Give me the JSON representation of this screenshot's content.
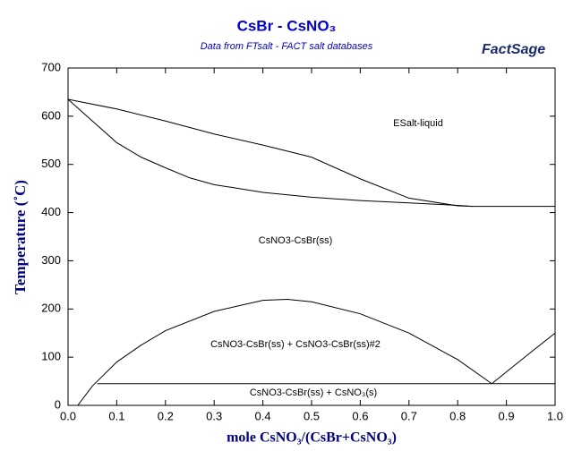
{
  "chart_data": {
    "type": "line",
    "title": "CsBr - CsNO₃",
    "subtitle": "Data from FTsalt - FACT salt databases",
    "logo": "FactSage",
    "x_label": "mole CsNO₃/(CsBr+CsNO₃)",
    "y_label": "Temperature (˚C)",
    "annotations": [
      "ESalt-liquid",
      "CsNO3-CsBr(ss)",
      "CsNO3-CsBr(ss) + CsNO3-CsBr(ss)#2",
      "CsNO3-CsBr(ss) + CsNO₃(s)"
    ],
    "xlim": [
      0,
      1
    ],
    "ylim": [
      0,
      700
    ],
    "xticks": [
      {
        "value": 0,
        "label": "0.0"
      },
      0.1,
      0.2,
      0.3,
      0.4,
      0.5,
      0.6,
      0.7,
      0.8,
      0.9,
      {
        "value": 1,
        "label": "1.0"
      }
    ],
    "yticks": [
      0,
      100,
      200,
      300,
      400,
      500,
      600,
      700
    ],
    "color": "#000000",
    "series": [
      {
        "x": [
          0,
          0.1,
          0.2,
          0.3,
          0.4,
          0.5,
          0.6,
          0.7,
          0.8,
          0.83,
          1.0
        ],
        "values": [
          635,
          615,
          590,
          563,
          540,
          515,
          470,
          430,
          414,
          413,
          413
        ]
      },
      {
        "x": [
          0,
          0.05,
          0.1,
          0.15,
          0.2,
          0.25,
          0.3,
          0.4,
          0.5,
          0.6,
          0.7,
          0.8,
          0.83
        ],
        "values": [
          635,
          590,
          545,
          515,
          493,
          472,
          458,
          442,
          432,
          425,
          420,
          415,
          413
        ]
      },
      {
        "x": [
          0.02,
          0.05,
          0.1,
          0.15,
          0.2,
          0.3,
          0.4,
          0.45,
          0.5,
          0.6,
          0.7,
          0.8,
          0.87
        ],
        "values": [
          0,
          40,
          90,
          125,
          155,
          195,
          218,
          220,
          215,
          190,
          150,
          95,
          45
        ]
      },
      {
        "x": [
          0.87,
          0.95,
          1.0
        ],
        "values": [
          45,
          110,
          150
        ]
      },
      {
        "x": [
          0.06,
          1.0
        ],
        "values": [
          45,
          45
        ]
      }
    ]
  }
}
